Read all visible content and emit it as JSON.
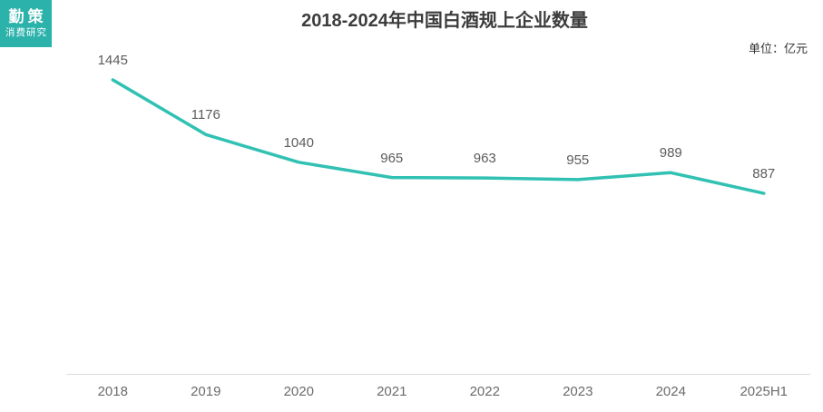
{
  "logo": {
    "line1": "勤策",
    "line2": "消费研究",
    "bg_color": "#2BB2AB"
  },
  "header": {
    "title": "2018-2024年中国白酒规上企业数量",
    "unit_label": "单位：亿元"
  },
  "chart_data": {
    "type": "line",
    "categories": [
      "2018",
      "2019",
      "2020",
      "2021",
      "2022",
      "2023",
      "2024",
      "2025H1"
    ],
    "values": [
      1445,
      1176,
      1040,
      965,
      963,
      955,
      989,
      887
    ],
    "title": "2018-2024年中国白酒规上企业数量",
    "xlabel": "",
    "ylabel": "",
    "ylim": [
      0,
      1550
    ],
    "grid": false,
    "legend": "none",
    "line_color": "#31C1B3",
    "label_color": "#5c5c5c",
    "axis_color": "#dcdcdc",
    "data_labels_visible": true
  }
}
